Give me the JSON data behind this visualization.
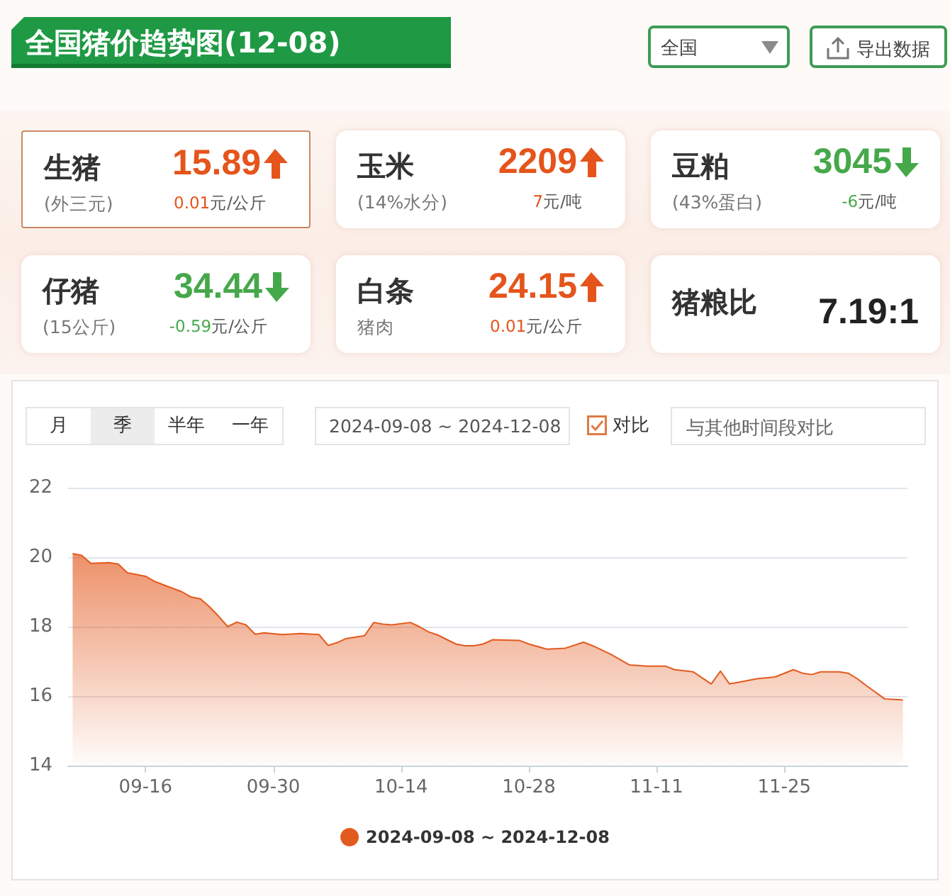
{
  "chart_data": [
    {
      "type": "other",
      "title": "全国猪价趋势图(12-08)",
      "annotations": [
        "全国",
        "导出数据"
      ]
    },
    {
      "type": "other",
      "title": "生猪",
      "subtitle": "(外三元)",
      "annotations": [
        "15.89",
        "0.01元/公斤"
      ],
      "colors": [
        "#e5541b"
      ]
    },
    {
      "type": "other",
      "title": "玉米",
      "subtitle": "(14%水分)",
      "annotations": [
        "2209",
        "7元/吨"
      ],
      "colors": [
        "#e5541b"
      ]
    },
    {
      "type": "other",
      "title": "豆粕",
      "subtitle": "(43%蛋白)",
      "annotations": [
        "3045",
        "-6元/吨"
      ],
      "colors": [
        "#45a84a"
      ]
    },
    {
      "type": "other",
      "title": "仔猪",
      "subtitle": "(15公斤)",
      "annotations": [
        "34.44",
        "-0.59元/公斤"
      ],
      "colors": [
        "#45a84a"
      ]
    },
    {
      "type": "other",
      "title": "白条",
      "subtitle": "猪肉",
      "annotations": [
        "24.15",
        "0.01元/公斤"
      ],
      "colors": [
        "#e5541b"
      ]
    },
    {
      "type": "other",
      "title": "猪粮比",
      "annotations": [
        "7.19:1"
      ],
      "colors": [
        "#222222"
      ]
    },
    {
      "type": "area",
      "annotations": [
        "月",
        "季",
        "半年",
        "一年",
        "2024-09-08 ~ 2024-12-08",
        "对比",
        "与其他时间段对比"
      ],
      "x": [
        "2024-09-08",
        "2024-09-09",
        "2024-09-10",
        "2024-09-12",
        "2024-09-13",
        "2024-09-14",
        "2024-09-15",
        "2024-09-16",
        "2024-09-17",
        "2024-09-18",
        "2024-09-20",
        "2024-09-21",
        "2024-09-22",
        "2024-09-23",
        "2024-09-24",
        "2024-09-25",
        "2024-09-26",
        "2024-09-27",
        "2024-09-28",
        "2024-09-29",
        "2024-10-01",
        "2024-10-03",
        "2024-10-05",
        "2024-10-06",
        "2024-10-07",
        "2024-10-08",
        "2024-10-10",
        "2024-10-11",
        "2024-10-12",
        "2024-10-13",
        "2024-10-15",
        "2024-10-16",
        "2024-10-17",
        "2024-10-18",
        "2024-10-20",
        "2024-10-21",
        "2024-10-22",
        "2024-10-23",
        "2024-10-24",
        "2024-10-27",
        "2024-10-28",
        "2024-10-30",
        "2024-11-01",
        "2024-11-03",
        "2024-11-04",
        "2024-11-06",
        "2024-11-08",
        "2024-11-10",
        "2024-11-12",
        "2024-11-13",
        "2024-11-15",
        "2024-11-17",
        "2024-11-18",
        "2024-11-19",
        "2024-11-20",
        "2024-11-22",
        "2024-11-24",
        "2024-11-26",
        "2024-11-27",
        "2024-11-28",
        "2024-11-29",
        "2024-12-01",
        "2024-12-02",
        "2024-12-03",
        "2024-12-04",
        "2024-12-06",
        "2024-12-08"
      ],
      "series": [
        {
          "name": "2024-09-08 ~ 2024-12-08",
          "color": "#e35a1e",
          "values": [
            20.1,
            20.05,
            19.82,
            19.84,
            19.8,
            19.55,
            19.5,
            19.45,
            19.3,
            19.2,
            19.0,
            18.85,
            18.8,
            18.57,
            18.3,
            18.0,
            18.13,
            18.05,
            17.78,
            17.82,
            17.77,
            17.8,
            17.77,
            17.46,
            17.54,
            17.66,
            17.74,
            18.12,
            18.07,
            18.05,
            18.12,
            18.0,
            17.85,
            17.76,
            17.5,
            17.45,
            17.45,
            17.5,
            17.62,
            17.6,
            17.5,
            17.35,
            17.38,
            17.55,
            17.45,
            17.2,
            16.9,
            16.86,
            16.86,
            16.76,
            16.7,
            16.35,
            16.72,
            16.35,
            16.4,
            16.5,
            16.55,
            16.76,
            16.66,
            16.62,
            16.7,
            16.7,
            16.66,
            16.5,
            16.3,
            15.92,
            15.89
          ]
        }
      ],
      "xlim": [
        "2024-09-07T12:00",
        "2024-12-08T12:00"
      ],
      "xticks": [
        {
          "value": "2024-09-16",
          "label": "09-16"
        },
        {
          "value": "2024-09-30",
          "label": "09-30"
        },
        {
          "value": "2024-10-14",
          "label": "10-14"
        },
        {
          "value": "2024-10-28",
          "label": "10-28"
        },
        {
          "value": "2024-11-11",
          "label": "11-11"
        },
        {
          "value": "2024-11-25",
          "label": "11-25"
        }
      ],
      "ylim": [
        14,
        22
      ],
      "yticks": [
        14,
        16,
        18,
        20,
        22
      ],
      "grid": "y",
      "legend": "bottom",
      "marker": "none"
    }
  ]
}
